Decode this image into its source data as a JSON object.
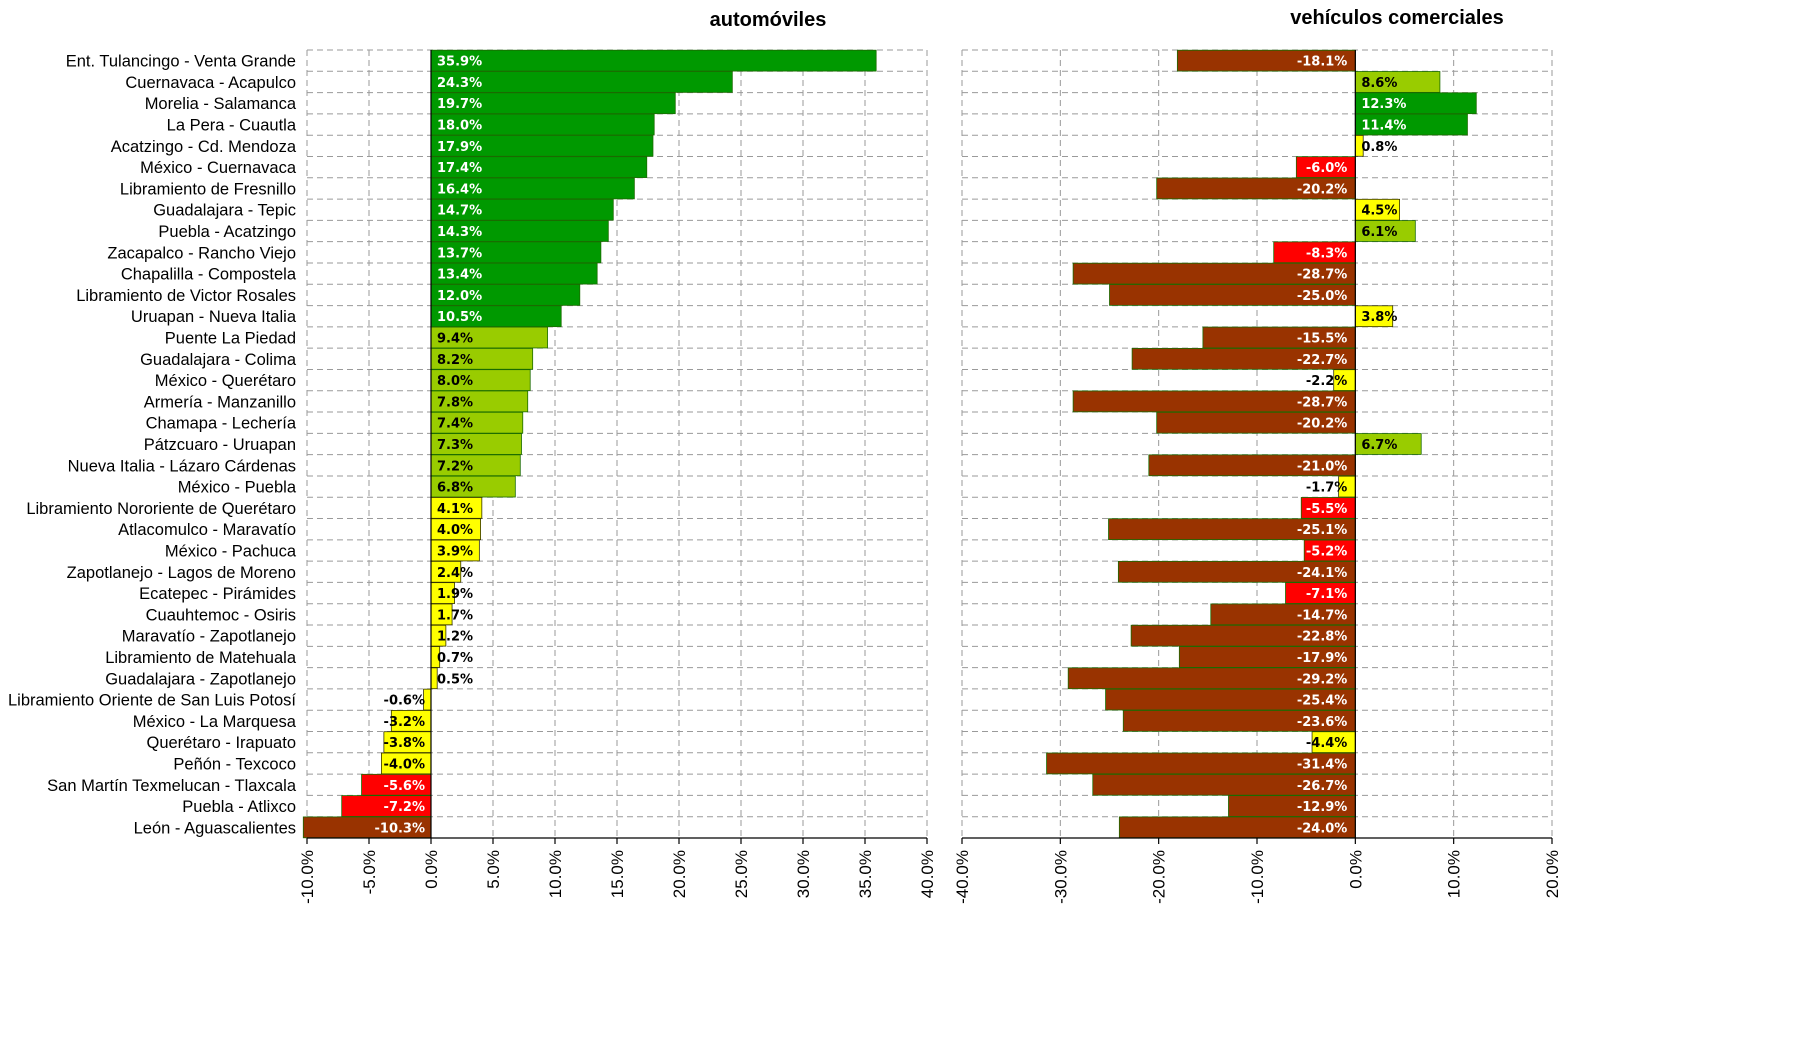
{
  "colors": {
    "dark_green": "#009900",
    "light_green": "#99cc00",
    "yellow": "#ffff00",
    "red": "#ff0000",
    "brown": "#993300"
  },
  "chart_data": [
    {
      "type": "bar",
      "orientation": "horizontal",
      "title": "automóviles",
      "xlim": [
        -10,
        40
      ],
      "xticks": [
        -10,
        -5,
        0,
        5,
        10,
        15,
        20,
        25,
        30,
        35,
        40
      ],
      "tick_labels": [
        "-10.0%",
        "-5.0%",
        "0.0%",
        "5.0%",
        "10.0%",
        "15.0%",
        "20.0%",
        "25.0%",
        "30.0%",
        "35.0%",
        "40.0%"
      ],
      "grid": true,
      "categories": [
        "Ent. Tulancingo - Venta Grande",
        "Cuernavaca - Acapulco",
        "Morelia - Salamanca",
        "La Pera - Cuautla",
        "Acatzingo - Cd. Mendoza",
        "México - Cuernavaca",
        "Libramiento de Fresnillo",
        "Guadalajara - Tepic",
        "Puebla - Acatzingo",
        "Zacapalco - Rancho Viejo",
        "Chapalilla - Compostela",
        "Libramiento de Victor Rosales",
        "Uruapan - Nueva Italia",
        "Puente La Piedad",
        "Guadalajara - Colima",
        "México - Querétaro",
        "Armería - Manzanillo",
        "Chamapa - Lechería",
        "Pátzcuaro - Uruapan",
        "Nueva Italia - Lázaro Cárdenas",
        "México - Puebla",
        "Libramiento Nororiente de Querétaro",
        "Atlacomulco - Maravatío",
        "México - Pachuca",
        "Zapotlanejo - Lagos de Moreno",
        "Ecatepec - Pirámides",
        "Cuauhtemoc - Osiris",
        "Maravatío - Zapotlanejo",
        "Libramiento de Matehuala",
        "Guadalajara - Zapotlanejo",
        "Libramiento Oriente de San Luis Potosí",
        "México - La Marquesa",
        "Querétaro - Irapuato",
        "Peñón - Texcoco",
        "San Martín Texmelucan - Tlaxcala",
        "Puebla - Atlixco",
        "León - Aguascalientes"
      ],
      "values": [
        35.9,
        24.3,
        19.7,
        18.0,
        17.9,
        17.4,
        16.4,
        14.7,
        14.3,
        13.7,
        13.4,
        12.0,
        10.5,
        9.4,
        8.2,
        8.0,
        7.8,
        7.4,
        7.3,
        7.2,
        6.8,
        4.1,
        4.0,
        3.9,
        2.4,
        1.9,
        1.7,
        1.2,
        0.7,
        0.5,
        -0.6,
        -3.2,
        -3.8,
        -4.0,
        -5.6,
        -7.2,
        -10.3
      ],
      "labels": [
        "35.9%",
        "24.3%",
        "19.7%",
        "18.0%",
        "17.9%",
        "17.4%",
        "16.4%",
        "14.7%",
        "14.3%",
        "13.7%",
        "13.4%",
        "12.0%",
        "10.5%",
        "9.4%",
        "8.2%",
        "8.0%",
        "7.8%",
        "7.4%",
        "7.3%",
        "7.2%",
        "6.8%",
        "4.1%",
        "4.0%",
        "3.9%",
        "2.4%",
        "1.9%",
        "1.7%",
        "1.2%",
        "0.7%",
        "0.5%",
        "-0.6%",
        "-3.2%",
        "-3.8%",
        "-4.0%",
        "-5.6%",
        "-7.2%",
        "-10.3%"
      ]
    },
    {
      "type": "bar",
      "orientation": "horizontal",
      "title": "vehículos comerciales",
      "xlim": [
        -40,
        20
      ],
      "xticks": [
        -40,
        -30,
        -20,
        -10,
        0,
        10,
        20
      ],
      "tick_labels": [
        "-40.0%",
        "-30.0%",
        "-20.0%",
        "-10.0%",
        "0.0%",
        "10.0%",
        "20.0%"
      ],
      "grid": true,
      "values": [
        -18.1,
        8.6,
        12.3,
        11.4,
        0.8,
        -6.0,
        -20.2,
        4.5,
        6.1,
        -8.3,
        -28.7,
        -25.0,
        3.8,
        -15.5,
        -22.7,
        -2.2,
        -28.7,
        -20.2,
        6.7,
        -21.0,
        -1.7,
        -5.5,
        -25.1,
        -5.2,
        -24.1,
        -7.1,
        -14.7,
        -22.8,
        -17.9,
        -29.2,
        -25.4,
        -23.6,
        -4.4,
        -31.4,
        -26.7,
        -12.9,
        -24.0
      ],
      "labels": [
        "-18.1%",
        "8.6%",
        "12.3%",
        "11.4%",
        "0.8%",
        "-6.0%",
        "-20.2%",
        "4.5%",
        "6.1%",
        "-8.3%",
        "-28.7%",
        "-25.0%",
        "3.8%",
        "-15.5%",
        "-22.7%",
        "-2.2%",
        "-28.7%",
        "-20.2%",
        "6.7%",
        "-21.0%",
        "-1.7%",
        "-5.5%",
        "-25.1%",
        "-5.2%",
        "-24.1%",
        "-7.1%",
        "-14.7%",
        "-22.8%",
        "-17.9%",
        "-29.2%",
        "-25.4%",
        "-23.6%",
        "-4.4%",
        "-31.4%",
        "-26.7%",
        "-12.9%",
        "-24.0%"
      ]
    }
  ]
}
